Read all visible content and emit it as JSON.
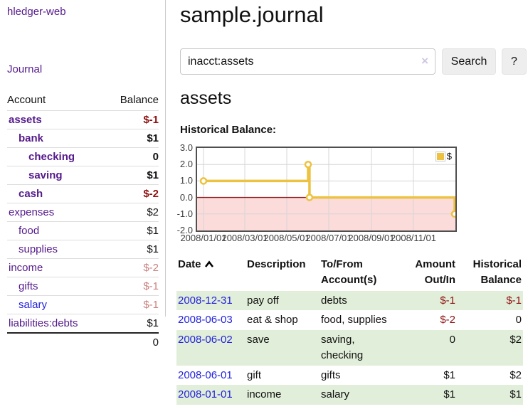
{
  "sidebar": {
    "app_title": "hledger-web",
    "journal_link": "Journal",
    "accounts_table": {
      "headers": [
        "Account",
        "Balance"
      ],
      "rows": [
        {
          "name": "assets",
          "indent": 1,
          "bold": true,
          "balance": "$-1",
          "balance_style": "neg"
        },
        {
          "name": "bank",
          "indent": 2,
          "bold": true,
          "balance": "$1",
          "balance_style": "pos"
        },
        {
          "name": "checking",
          "indent": 3,
          "bold": true,
          "balance": "0",
          "balance_style": "pos"
        },
        {
          "name": "saving",
          "indent": 3,
          "bold": true,
          "balance": "$1",
          "balance_style": "pos"
        },
        {
          "name": "cash",
          "indent": 2,
          "bold": true,
          "balance": "$-2",
          "balance_style": "neg"
        },
        {
          "name": "expenses",
          "indent": 1,
          "bold": false,
          "balance": "$2",
          "balance_style": "pos"
        },
        {
          "name": "food",
          "indent": 2,
          "bold": false,
          "balance": "$1",
          "balance_style": "pos"
        },
        {
          "name": "supplies",
          "indent": 2,
          "bold": false,
          "balance": "$1",
          "balance_style": "pos"
        },
        {
          "name": "income",
          "indent": 1,
          "bold": false,
          "balance": "$-2",
          "balance_style": "neg-light"
        },
        {
          "name": "gifts",
          "indent": 2,
          "bold": false,
          "balance": "$-1",
          "balance_style": "neg-light"
        },
        {
          "name": "salary",
          "indent": 2,
          "bold": false,
          "balance": "$-1",
          "balance_style": "neg-light",
          "link_style": "blue"
        },
        {
          "name": "liabilities:debts",
          "indent": 1,
          "bold": false,
          "balance": "$1",
          "balance_style": "pos"
        }
      ],
      "total": "0"
    }
  },
  "main": {
    "title": "sample.journal",
    "search": {
      "value": "inacct:assets",
      "clear_icon": "×",
      "button_label": "Search",
      "help_label": "?"
    },
    "account_heading": "assets",
    "chart_label": "Historical Balance:"
  },
  "chart_data": {
    "type": "line",
    "title": "Historical Balance:",
    "step": true,
    "series": [
      {
        "name": "$",
        "points": [
          [
            "2008-01-01",
            1
          ],
          [
            "2008-06-01",
            2
          ],
          [
            "2008-06-03",
            0
          ],
          [
            "2008-12-31",
            -1
          ]
        ]
      }
    ],
    "ylim": [
      -2.0,
      3.0
    ],
    "yticks": [
      "3.0",
      "2.0",
      "1.0",
      "0.0",
      "-1.0",
      "-2.0"
    ],
    "xticks": [
      {
        "label": "2008/01/01",
        "date": "2008-01-01"
      },
      {
        "label": "2008/03/01",
        "date": "2008-03-01"
      },
      {
        "label": "2008/05/01",
        "date": "2008-05-01"
      },
      {
        "label": "2008/07/01",
        "date": "2008-07-01"
      },
      {
        "label": "2008/09/01",
        "date": "2008-09-01"
      },
      {
        "label": "2008/11/01",
        "date": "2008-11-01"
      }
    ],
    "legend": {
      "label": "$",
      "position": "top-right"
    },
    "grid": true,
    "colors": {
      "line": "#edc240",
      "marker_fill": "#ffffff",
      "negative_region": "#fcdbdb",
      "zero_line": "#8f1b1b",
      "gridline": "#d6d6d6",
      "border": "#4f4f4f"
    }
  },
  "register": {
    "headers": {
      "date": "Date",
      "description": "Description",
      "accounts": "To/From Account(s)",
      "amount": "Amount Out/In",
      "balance": "Historical Balance"
    },
    "rows": [
      {
        "date": "2008-12-31",
        "description": "pay off",
        "accounts": "debts",
        "amount": "$-1",
        "amount_style": "neg",
        "balance": "$-1",
        "balance_style": "neg",
        "shaded": true
      },
      {
        "date": "2008-06-03",
        "description": "eat & shop",
        "accounts": "food, supplies",
        "amount": "$-2",
        "amount_style": "neg",
        "balance": "0",
        "balance_style": "pos",
        "shaded": false
      },
      {
        "date": "2008-06-02",
        "description": "save",
        "accounts": "saving, checking",
        "amount": "0",
        "amount_style": "pos",
        "balance": "$2",
        "balance_style": "pos",
        "shaded": true
      },
      {
        "date": "2008-06-01",
        "description": "gift",
        "accounts": "gifts",
        "amount": "$1",
        "amount_style": "pos",
        "balance": "$2",
        "balance_style": "pos",
        "shaded": false
      },
      {
        "date": "2008-01-01",
        "description": "income",
        "accounts": "salary",
        "amount": "$1",
        "amount_style": "pos",
        "balance": "$1",
        "balance_style": "pos",
        "shaded": true
      }
    ]
  }
}
